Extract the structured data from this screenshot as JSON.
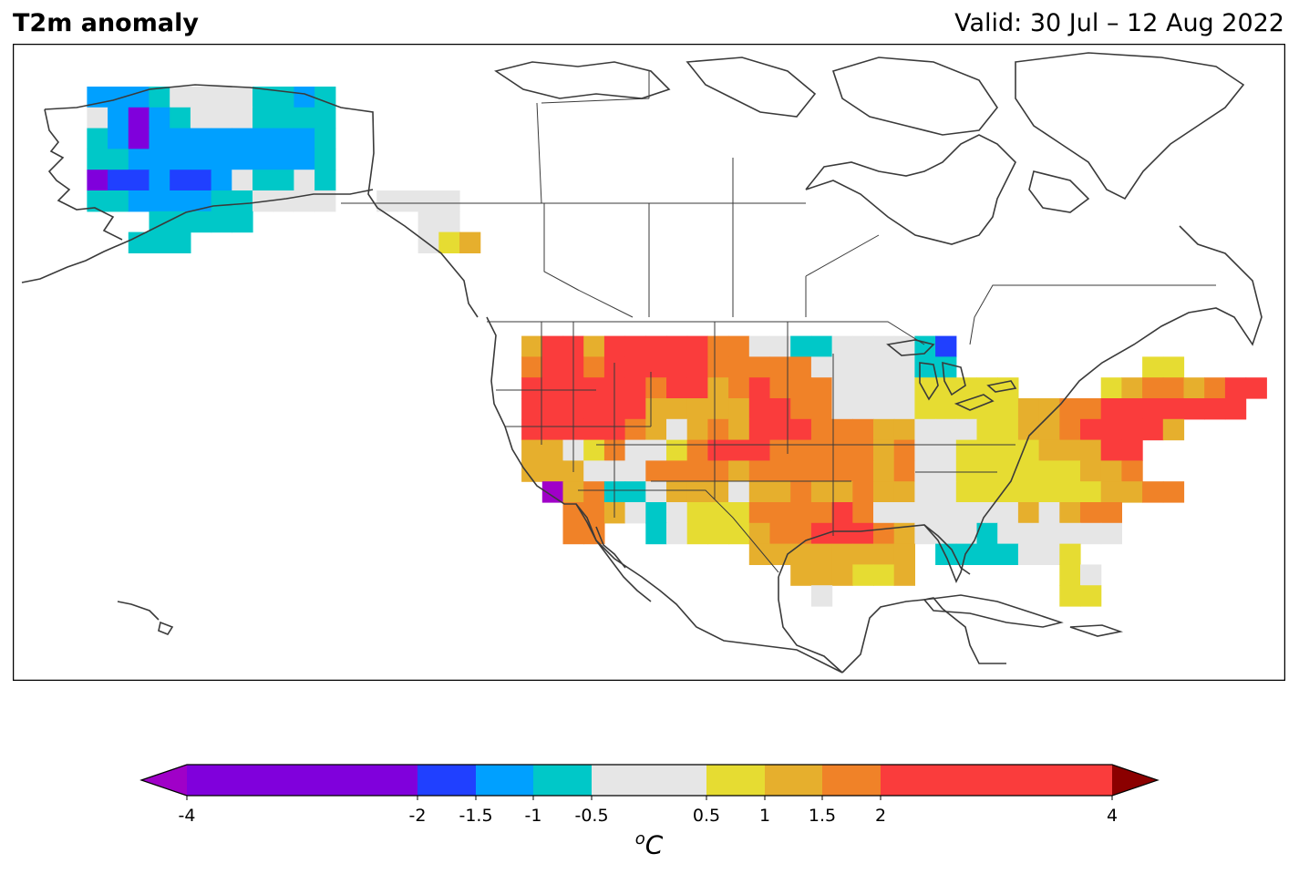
{
  "header": {
    "title": "T2m anomaly",
    "valid": "Valid: 30 Jul – 12 Aug 2022"
  },
  "colorbar": {
    "ticks": [
      "-4",
      "-2",
      "-1.5",
      "-1",
      "-0.5",
      "0.5",
      "1",
      "1.5",
      "2",
      "4"
    ],
    "unit_base": "C",
    "unit_sup": "o",
    "bins": [
      {
        "from": -4,
        "to": -2,
        "color": "#8000dc"
      },
      {
        "from": -2,
        "to": -1.5,
        "color": "#2040ff"
      },
      {
        "from": -1.5,
        "to": -1,
        "color": "#00a0ff"
      },
      {
        "from": -1,
        "to": -0.5,
        "color": "#00c8c8"
      },
      {
        "from": -0.5,
        "to": 0.5,
        "color": "#e6e6e6"
      },
      {
        "from": 0.5,
        "to": 1,
        "color": "#e6dc32"
      },
      {
        "from": 1,
        "to": 1.5,
        "color": "#e6af2d"
      },
      {
        "from": 1.5,
        "to": 2,
        "color": "#f08228"
      },
      {
        "from": 2,
        "to": 4,
        "color": "#fa3c3c"
      }
    ],
    "under_color": "#a000c8",
    "over_color": "#8b0000"
  },
  "map": {
    "region": "North America",
    "grid_legend": {
      "V": "#8000dc",
      "B": "#2040ff",
      "L": "#00a0ff",
      "C": "#00c8c8",
      "G": "#e6e6e6",
      "Y": "#e6dc32",
      "A": "#e6af2d",
      "O": "#f08228",
      "R": "#fa3c3c",
      "P": "#a000c8"
    }
  }
}
